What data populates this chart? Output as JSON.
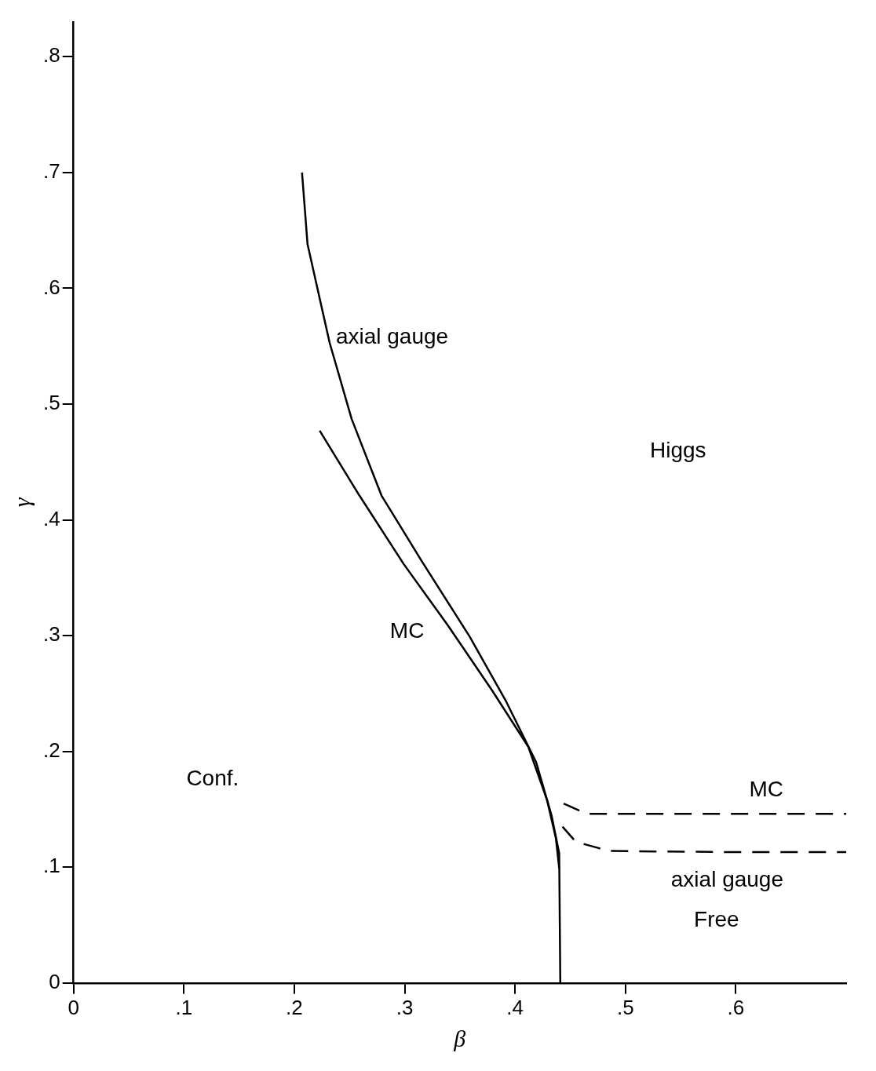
{
  "chart_data": {
    "type": "line",
    "xlabel": "β",
    "ylabel": "γ",
    "xlim": [
      0,
      0.7
    ],
    "ylim": [
      0,
      0.83
    ],
    "xticks": [
      0,
      {
        "value": 0.1,
        "label": ".1"
      },
      {
        "value": 0.2,
        "label": ".2"
      },
      {
        "value": 0.3,
        "label": ".3"
      },
      {
        "value": 0.4,
        "label": ".4"
      },
      {
        "value": 0.5,
        "label": ".5"
      },
      {
        "value": 0.6,
        "label": ".6"
      }
    ],
    "yticks": [
      0,
      {
        "value": 0.1,
        "label": ".1"
      },
      {
        "value": 0.2,
        "label": ".2"
      },
      {
        "value": 0.3,
        "label": ".3"
      },
      {
        "value": 0.4,
        "label": ".4"
      },
      {
        "value": 0.5,
        "label": ".5"
      },
      {
        "value": 0.6,
        "label": ".6"
      },
      {
        "value": 0.7,
        "label": ".7"
      },
      {
        "value": 0.8,
        "label": ".8"
      }
    ],
    "grid": false,
    "legend": false,
    "marker": "none",
    "series": [
      {
        "name": "axial gauge",
        "color": "#000000",
        "line_style": "solid",
        "x": [
          0.207,
          0.212,
          0.232,
          0.252,
          0.279,
          0.315,
          0.359,
          0.392,
          0.419,
          0.433,
          0.44,
          0.441
        ],
        "values": [
          0.7,
          0.638,
          0.553,
          0.487,
          0.421,
          0.365,
          0.299,
          0.243,
          0.191,
          0.145,
          0.112,
          0
        ]
      },
      {
        "name": "MC",
        "color": "#000000",
        "line_style": "solid",
        "x": [
          0.223,
          0.259,
          0.299,
          0.339,
          0.379,
          0.412,
          0.429,
          0.437,
          0.44
        ],
        "values": [
          0.477,
          0.421,
          0.362,
          0.309,
          0.253,
          0.204,
          0.158,
          0.125,
          0.099
        ]
      },
      {
        "name": "MC",
        "color": "#000000",
        "line_style": "dashed",
        "x": [
          0.444,
          0.465,
          0.5,
          0.6,
          0.7
        ],
        "values": [
          0.155,
          0.146,
          0.146,
          0.146,
          0.146
        ]
      },
      {
        "name": "axial gauge",
        "color": "#000000",
        "line_style": "dashed",
        "x": [
          0.443,
          0.455,
          0.485,
          0.6,
          0.7
        ],
        "values": [
          0.135,
          0.122,
          0.114,
          0.113,
          0.113
        ]
      }
    ],
    "annotations": [
      "Higgs",
      "Conf.",
      "Free"
    ]
  }
}
